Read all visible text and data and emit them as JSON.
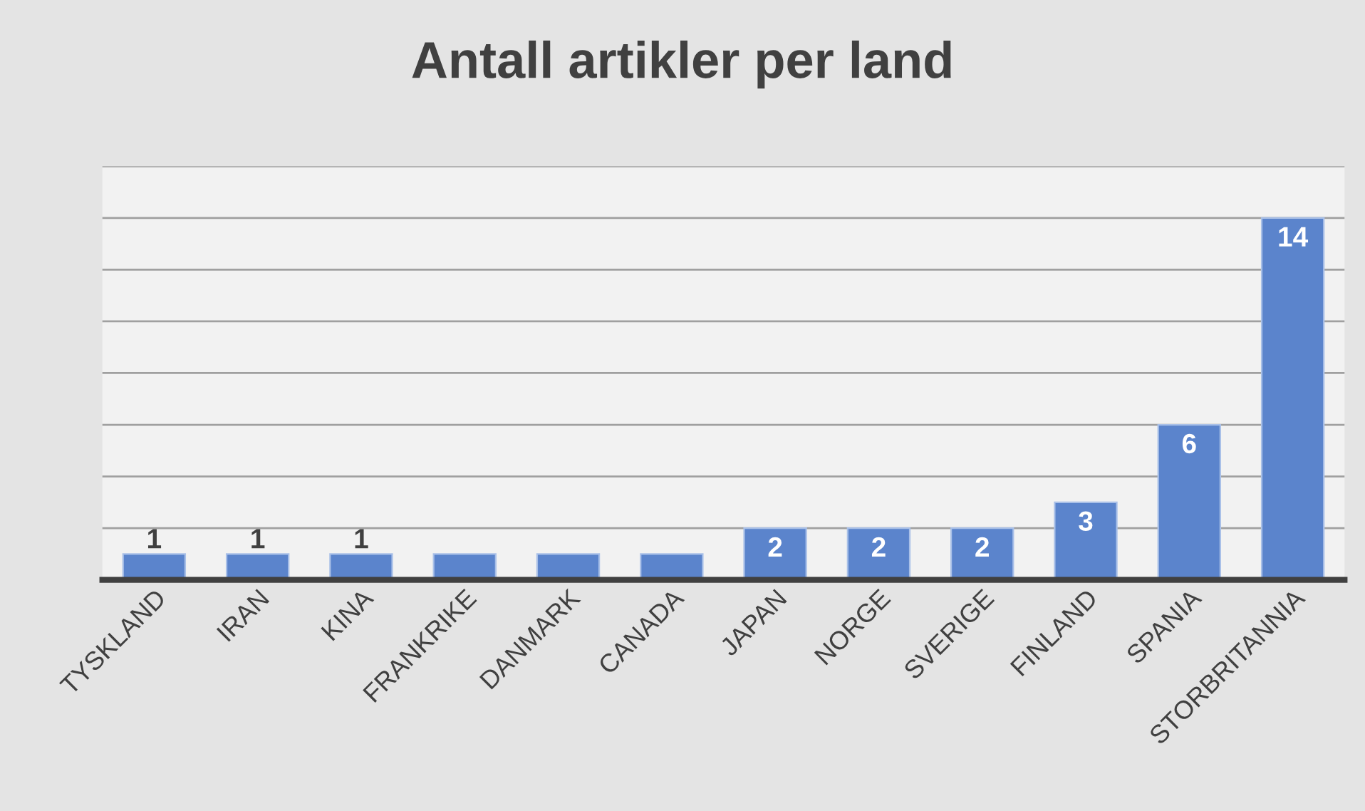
{
  "chart_data": {
    "type": "bar",
    "title": "Antall artikler per land",
    "categories": [
      "TYSKLAND",
      "IRAN",
      "KINA",
      "FRANKRIKE",
      "DANMARK",
      "CANADA",
      "JAPAN",
      "NORGE",
      "SVERIGE",
      "FINLAND",
      "SPANIA",
      "STORBRITANNIA"
    ],
    "values": [
      1,
      1,
      1,
      1,
      1,
      1,
      2,
      2,
      2,
      3,
      6,
      14
    ],
    "value_labels": [
      "1",
      "1",
      "1",
      null,
      null,
      null,
      "2",
      "2",
      "2",
      "3",
      "6",
      "14"
    ],
    "color": "#5b84cc",
    "ylim": [
      0,
      16
    ],
    "yticks": [
      {
        "value": 2,
        "label": null
      },
      {
        "value": 4,
        "label": null
      },
      {
        "value": 6,
        "label": null
      },
      {
        "value": 8,
        "label": null
      },
      {
        "value": 10,
        "label": null
      },
      {
        "value": 12,
        "label": null
      },
      {
        "value": 14,
        "label": null
      },
      {
        "value": 16,
        "label": null
      }
    ],
    "grid": "y",
    "tick_labels": "x"
  }
}
